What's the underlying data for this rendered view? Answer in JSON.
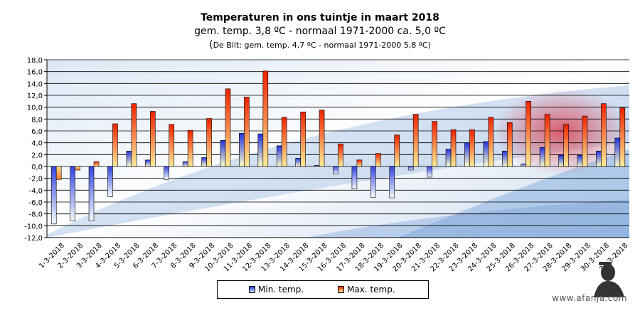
{
  "chart_data": {
    "type": "bar",
    "title": "Temperaturen in ons tuintje in maart 2018",
    "subtitle": "gem. temp. 3,8 ºC - normaal 1971-2000 ca. 5,0 ºC",
    "note_open": "(",
    "note": "De Bilt: gem. temp. 4,7 ºC - normaal 1971-2000 5,8 ºC)",
    "categories": [
      "1-3-2018",
      "2-3-2018",
      "3-3-2018",
      "4-3-2018",
      "5-3-2018",
      "6-3-2018",
      "7-3-2018",
      "8-3-2018",
      "9-3-2018",
      "10-3-2018",
      "11-3-2018",
      "12-3-2018",
      "13-3-2018",
      "14-3-2018",
      "15-3-2018",
      "16-3-2018",
      "17-3-2018",
      "18-3-2018",
      "19-3-2018",
      "20-3-2018",
      "21-3-2018",
      "22-3-2018",
      "23-3-2018",
      "24-3-2018",
      "25-3-2018",
      "26-3-2018",
      "27-3-2018",
      "28-3-2018",
      "29-3-2018",
      "30-3-2018",
      "31-3-2018"
    ],
    "series": [
      {
        "name": "Min. temp.",
        "color_pos": "#3333ee",
        "color_neg": "#ffffff",
        "values": [
          -9.7,
          -9.2,
          -9.2,
          -5.1,
          2.6,
          1.1,
          -2.2,
          0.8,
          1.5,
          4.4,
          5.6,
          5.5,
          3.5,
          1.4,
          0.2,
          -1.3,
          -3.8,
          -5.2,
          -5.3,
          -0.6,
          -1.8,
          2.9,
          4.0,
          4.2,
          2.6,
          0.4,
          3.2,
          1.9,
          1.9,
          2.6,
          4.8
        ]
      },
      {
        "name": "Max. temp.",
        "color_pos": "#ee2200",
        "color_neg": "#ffcc66",
        "values": [
          -2.2,
          -0.6,
          0.8,
          7.2,
          10.6,
          9.3,
          7.1,
          6.1,
          8.1,
          13.1,
          11.7,
          16.1,
          8.3,
          9.2,
          9.5,
          3.8,
          1.1,
          2.2,
          5.3,
          8.8,
          7.6,
          6.2,
          6.2,
          8.3,
          7.4,
          11.0,
          8.8,
          7.1,
          8.5,
          10.6,
          9.9
        ]
      }
    ],
    "yticks": [
      "18,0",
      "16,0",
      "14,0",
      "12,0",
      "10,0",
      "8,0",
      "6,0",
      "4,0",
      "2,0",
      "0,0",
      "-2,0",
      "-4,0",
      "-6,0",
      "-8,0",
      "-10,0",
      "-12,0"
    ],
    "ylim": [
      -12,
      18
    ],
    "grid": true,
    "legend_position": "bottom-center"
  },
  "watermark": "www.afanja.com"
}
